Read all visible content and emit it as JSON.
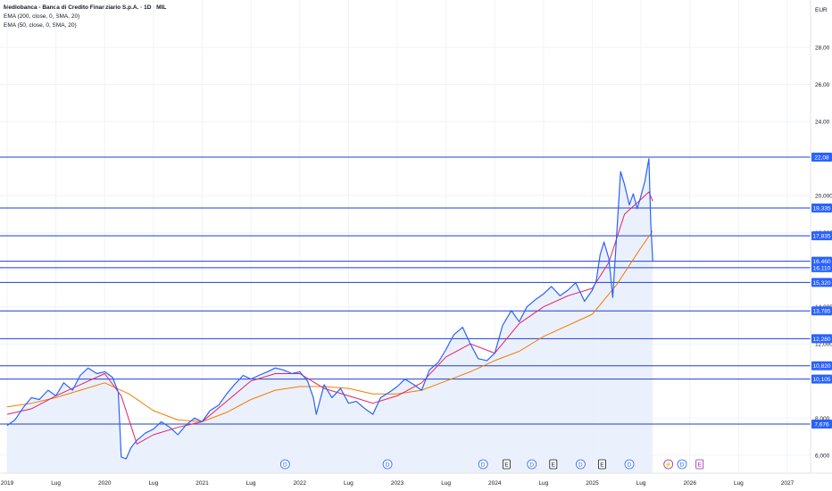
{
  "header": {
    "title": "Mediobanca - Banca di Credito Finanziario S.p.A. · 1D · MIL",
    "indicator_1": "EMA (200, close, 0, SMA, 20)",
    "indicator_2": "EMA (50, close, 0, SMA, 20)",
    "currency": "EUR"
  },
  "colors": {
    "price_line": "#2962ff",
    "price_fill": "#e8eefc",
    "ema50": "#e91e63",
    "ema200": "#f57c00",
    "level_line": "#1e3fd4",
    "level_label_bg": "#2962ff",
    "grid": "#f0f3fa",
    "event_dividend": "#2962ff",
    "event_earnings": "#131722",
    "event_split": "#9c27b0"
  },
  "chart_data": {
    "type": "line",
    "title": "Mediobanca - Banca di Credito Finanziario S.p.A. · 1D · MIL",
    "ylim": [
      6.0,
      30.0
    ],
    "y_ticks": [
      "6,000",
      "8,000",
      "12,000",
      "14,000",
      "16,000",
      "18,000",
      "20,000",
      "24,00",
      "26,00",
      "28,00"
    ],
    "x_ticks": [
      "2019",
      "Lug",
      "2020",
      "Lug",
      "2021",
      "Lug",
      "2022",
      "Lug",
      "2023",
      "Lug",
      "2024",
      "Lug",
      "2025",
      "Lug",
      "2026",
      "Lug",
      "2027"
    ],
    "x_tick_years": [
      2019.0,
      2019.5,
      2020.0,
      2020.5,
      2021.0,
      2021.5,
      2022.0,
      2022.5,
      2023.0,
      2023.5,
      2024.0,
      2024.5,
      2025.0,
      2025.5,
      2026.0,
      2026.5,
      2027.0
    ],
    "xlim": [
      2019.0,
      2027.45
    ],
    "series": [
      {
        "name": "price",
        "x": [
          2019.0,
          2019.08,
          2019.17,
          2019.25,
          2019.33,
          2019.42,
          2019.5,
          2019.58,
          2019.67,
          2019.75,
          2019.83,
          2019.92,
          2020.0,
          2020.08,
          2020.14,
          2020.17,
          2020.22,
          2020.27,
          2020.33,
          2020.42,
          2020.5,
          2020.58,
          2020.67,
          2020.75,
          2020.83,
          2020.92,
          2021.0,
          2021.08,
          2021.17,
          2021.25,
          2021.33,
          2021.42,
          2021.5,
          2021.58,
          2021.67,
          2021.75,
          2021.83,
          2021.92,
          2022.0,
          2022.08,
          2022.14,
          2022.17,
          2022.25,
          2022.33,
          2022.42,
          2022.5,
          2022.58,
          2022.67,
          2022.75,
          2022.83,
          2022.92,
          2023.0,
          2023.08,
          2023.17,
          2023.25,
          2023.33,
          2023.42,
          2023.5,
          2023.58,
          2023.67,
          2023.75,
          2023.83,
          2023.92,
          2024.0,
          2024.08,
          2024.17,
          2024.25,
          2024.33,
          2024.42,
          2024.5,
          2024.58,
          2024.67,
          2024.75,
          2024.83,
          2024.92,
          2025.0,
          2025.04,
          2025.08,
          2025.12,
          2025.17,
          2025.21,
          2025.25,
          2025.29,
          2025.33,
          2025.38,
          2025.42,
          2025.46,
          2025.5,
          2025.54,
          2025.58,
          2025.6,
          2025.62
        ],
        "values": [
          7.6,
          7.9,
          8.6,
          9.1,
          9.0,
          9.5,
          9.2,
          9.9,
          9.5,
          10.3,
          10.7,
          10.4,
          10.5,
          10.2,
          9.4,
          5.9,
          5.8,
          6.4,
          6.8,
          7.2,
          7.4,
          7.8,
          7.5,
          7.1,
          7.6,
          8.0,
          7.8,
          8.4,
          8.7,
          9.3,
          9.8,
          10.3,
          10.1,
          10.3,
          10.5,
          10.7,
          10.6,
          10.4,
          10.5,
          10.0,
          9.1,
          8.2,
          9.8,
          9.1,
          9.6,
          8.8,
          8.9,
          8.5,
          8.2,
          9.1,
          9.4,
          9.7,
          10.1,
          9.8,
          9.5,
          10.6,
          11.0,
          11.7,
          12.5,
          12.9,
          12.0,
          11.2,
          11.1,
          11.5,
          13.0,
          13.8,
          13.2,
          14.0,
          14.4,
          14.7,
          15.1,
          14.6,
          14.9,
          15.3,
          14.3,
          14.9,
          15.4,
          16.8,
          17.5,
          16.6,
          14.5,
          17.9,
          21.3,
          20.6,
          19.5,
          20.1,
          19.3,
          20.0,
          20.8,
          22.0,
          18.5,
          16.46
        ]
      },
      {
        "name": "EMA 50",
        "x": [
          2019.0,
          2019.25,
          2019.5,
          2019.75,
          2020.0,
          2020.17,
          2020.33,
          2020.5,
          2020.75,
          2021.0,
          2021.25,
          2021.5,
          2021.75,
          2022.0,
          2022.25,
          2022.5,
          2022.75,
          2023.0,
          2023.25,
          2023.5,
          2023.75,
          2024.0,
          2024.25,
          2024.5,
          2024.75,
          2025.0,
          2025.17,
          2025.33,
          2025.5,
          2025.58,
          2025.62
        ],
        "values": [
          8.2,
          8.5,
          9.2,
          9.8,
          10.4,
          9.2,
          6.6,
          7.1,
          7.5,
          7.8,
          8.9,
          10.0,
          10.4,
          10.4,
          9.6,
          9.2,
          8.8,
          9.2,
          9.9,
          11.3,
          12.0,
          11.5,
          13.1,
          14.0,
          14.6,
          15.0,
          16.4,
          19.0,
          19.8,
          20.2,
          19.7
        ]
      },
      {
        "name": "EMA 200",
        "x": [
          2019.0,
          2019.25,
          2019.5,
          2019.75,
          2020.0,
          2020.25,
          2020.5,
          2020.75,
          2021.0,
          2021.25,
          2021.5,
          2021.75,
          2022.0,
          2022.25,
          2022.5,
          2022.75,
          2023.0,
          2023.25,
          2023.5,
          2023.75,
          2024.0,
          2024.25,
          2024.5,
          2024.75,
          2025.0,
          2025.25,
          2025.5,
          2025.62
        ],
        "values": [
          8.6,
          8.8,
          9.1,
          9.5,
          9.9,
          9.3,
          8.4,
          7.9,
          7.8,
          8.3,
          9.0,
          9.5,
          9.7,
          9.7,
          9.6,
          9.3,
          9.3,
          9.5,
          10.0,
          10.5,
          11.1,
          11.6,
          12.4,
          13.0,
          13.6,
          15.2,
          17.2,
          18.1
        ]
      }
    ],
    "horizontal_levels": [
      {
        "value": 22.08,
        "label": "22,08"
      },
      {
        "value": 19.335,
        "label": "19,335"
      },
      {
        "value": 17.835,
        "label": "17,835"
      },
      {
        "value": 16.46,
        "label": "16,460"
      },
      {
        "value": 16.11,
        "label": "16,110"
      },
      {
        "value": 15.32,
        "label": "15,320"
      },
      {
        "value": 13.785,
        "label": "13,785"
      },
      {
        "value": 12.28,
        "label": "12,280"
      },
      {
        "value": 10.82,
        "label": "10,820"
      },
      {
        "value": 10.105,
        "label": "10,105"
      },
      {
        "value": 7.676,
        "label": "7,676"
      }
    ],
    "events": [
      {
        "x": 2021.85,
        "label": "D",
        "kind": "dividend"
      },
      {
        "x": 2022.9,
        "label": "D",
        "kind": "dividend"
      },
      {
        "x": 2023.88,
        "label": "D",
        "kind": "dividend"
      },
      {
        "x": 2024.12,
        "label": "E",
        "kind": "earnings"
      },
      {
        "x": 2024.38,
        "label": "D",
        "kind": "dividend"
      },
      {
        "x": 2024.6,
        "label": "E",
        "kind": "earnings"
      },
      {
        "x": 2024.88,
        "label": "D",
        "kind": "dividend"
      },
      {
        "x": 2025.1,
        "label": "E",
        "kind": "earnings"
      },
      {
        "x": 2025.38,
        "label": "D",
        "kind": "dividend"
      },
      {
        "x": 2025.78,
        "label": "⚡",
        "kind": "split"
      },
      {
        "x": 2025.92,
        "label": "D",
        "kind": "dividend"
      },
      {
        "x": 2026.1,
        "label": "E",
        "kind": "split"
      }
    ],
    "grid": true
  }
}
